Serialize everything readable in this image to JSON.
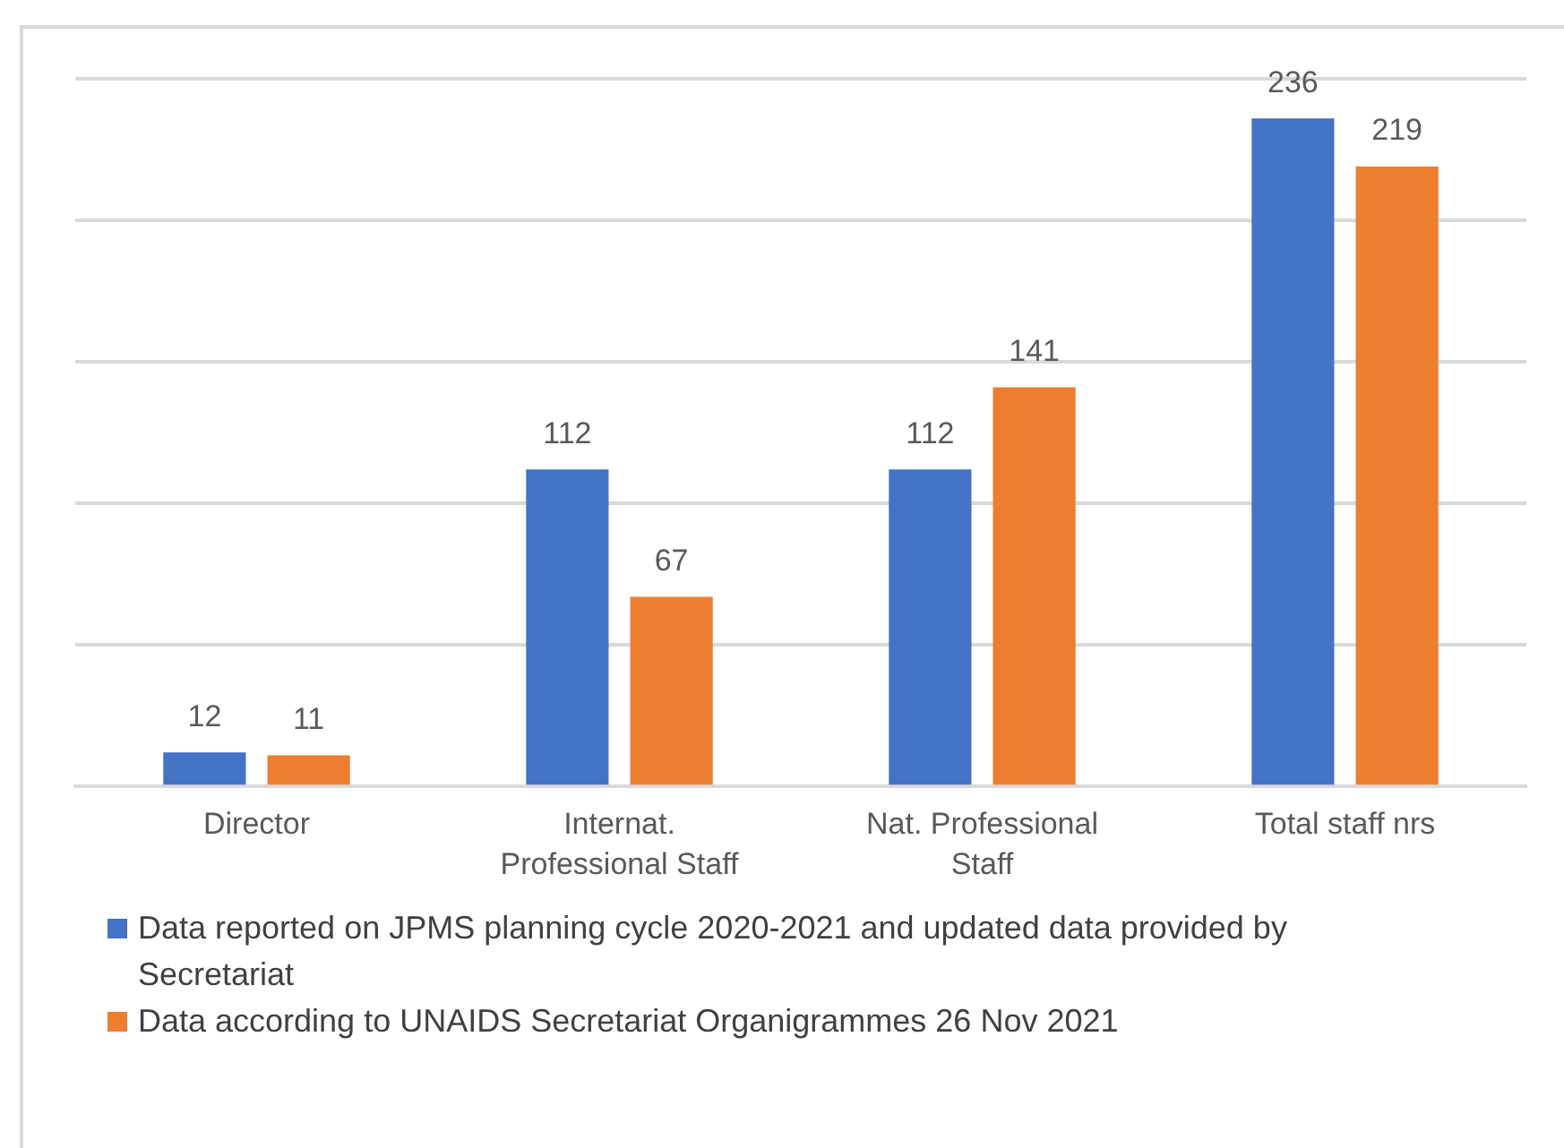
{
  "chart_data": {
    "type": "bar",
    "categories": [
      "Director",
      "Internat. Professional Staff",
      "Nat. Professional Staff",
      "Total staff nrs"
    ],
    "series": [
      {
        "name": "Data reported on JPMS planning cycle 2020-2021 and updated data provided by Secretariat",
        "color": "#4472c4",
        "values": [
          12,
          112,
          112,
          236
        ]
      },
      {
        "name": "Data according to UNAIDS Secretariat Organigrammes 26 Nov 2021",
        "color": "#ed7d31",
        "values": [
          11,
          67,
          141,
          219
        ]
      }
    ],
    "ylim": [
      0,
      250
    ],
    "yticks": [
      {
        "value": 0,
        "label": null
      },
      {
        "value": 50,
        "label": null
      },
      {
        "value": 100,
        "label": null
      },
      {
        "value": 150,
        "label": null
      },
      {
        "value": 200,
        "label": null
      },
      {
        "value": 250,
        "label": null
      }
    ],
    "grid": "y",
    "legend": "bottom",
    "data_labels": true,
    "tick_labels": "x"
  }
}
